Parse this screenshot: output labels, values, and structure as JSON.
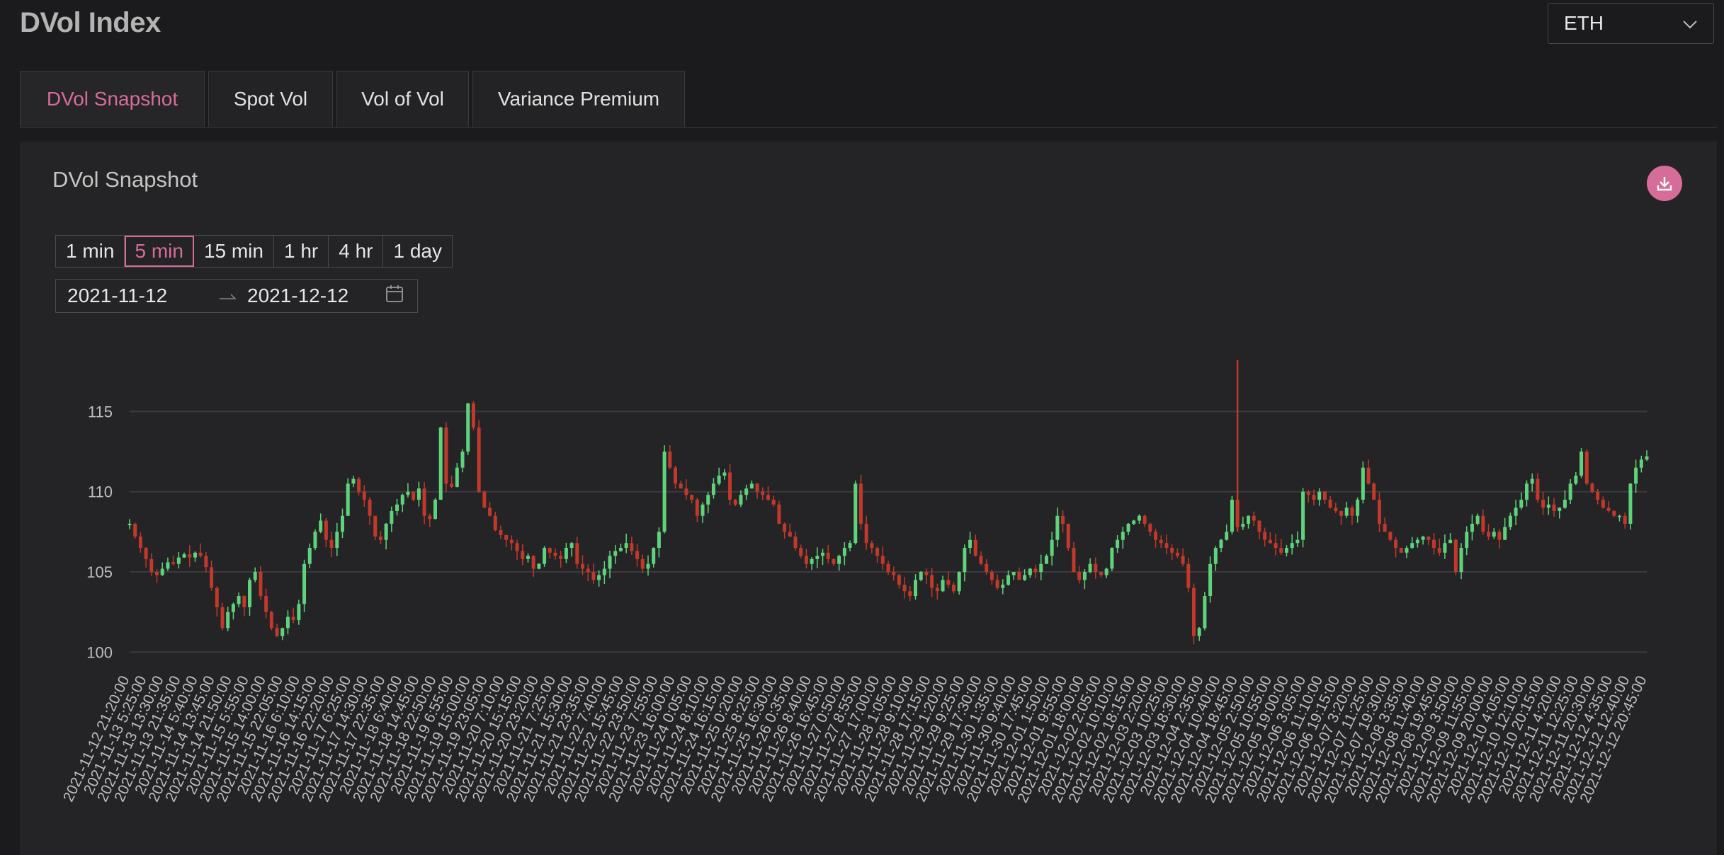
{
  "header": {
    "title": "DVol Index",
    "asset": "ETH"
  },
  "tabs": [
    {
      "label": "DVol Snapshot"
    },
    {
      "label": "Spot Vol"
    },
    {
      "label": "Vol of Vol"
    },
    {
      "label": "Variance Premium"
    }
  ],
  "panel": {
    "title": "DVol Snapshot",
    "intervals": [
      "1 min",
      "5 min",
      "15 min",
      "1 hr",
      "4 hr",
      "1 day"
    ],
    "selected_interval": "5 min",
    "date_start": "2021-11-12",
    "date_end": "2021-12-12"
  },
  "colors": {
    "accent": "#d66c9a",
    "up": "#5ed37c",
    "down": "#c0392b"
  },
  "chart_data": {
    "type": "candlestick",
    "title": "",
    "xlabel": "",
    "ylabel": "",
    "ylim": [
      99.4,
      118.5
    ],
    "yticks": [
      100,
      105,
      110,
      115
    ],
    "grid": true,
    "x_tick_labels": [
      "2021-11-12 21:20:00",
      "2021-11-13 5:25:00",
      "2021-11-13 13:30:00",
      "2021-11-13 21:35:00",
      "2021-11-14 5:40:00",
      "2021-11-14 13:45:00",
      "2021-11-14 21:50:00",
      "2021-11-15 5:55:00",
      "2021-11-15 14:00:00",
      "2021-11-15 22:05:00",
      "2021-11-16 6:10:00",
      "2021-11-16 14:15:00",
      "2021-11-16 22:20:00",
      "2021-11-17 6:25:00",
      "2021-11-17 14:30:00",
      "2021-11-17 22:35:00",
      "2021-11-18 6:40:00",
      "2021-11-18 14:45:00",
      "2021-11-18 22:50:00",
      "2021-11-19 6:55:00",
      "2021-11-19 15:00:00",
      "2021-11-19 23:05:00",
      "2021-11-20 7:10:00",
      "2021-11-20 15:15:00",
      "2021-11-20 23:20:00",
      "2021-11-21 7:25:00",
      "2021-11-21 15:30:00",
      "2021-11-21 23:35:00",
      "2021-11-22 7:40:00",
      "2021-11-22 15:45:00",
      "2021-11-22 23:50:00",
      "2021-11-23 7:55:00",
      "2021-11-23 16:00:00",
      "2021-11-24 0:05:00",
      "2021-11-24 8:10:00",
      "2021-11-24 16:15:00",
      "2021-11-25 0:20:00",
      "2021-11-25 8:25:00",
      "2021-11-25 16:30:00",
      "2021-11-26 0:35:00",
      "2021-11-26 8:40:00",
      "2021-11-26 16:45:00",
      "2021-11-27 0:50:00",
      "2021-11-27 8:55:00",
      "2021-11-27 17:00:00",
      "2021-11-28 1:05:00",
      "2021-11-28 9:10:00",
      "2021-11-28 17:15:00",
      "2021-11-29 1:20:00",
      "2021-11-29 9:25:00",
      "2021-11-29 17:30:00",
      "2021-11-30 1:35:00",
      "2021-11-30 9:40:00",
      "2021-11-30 17:45:00",
      "2021-12-01 1:50:00",
      "2021-12-01 9:55:00",
      "2021-12-01 18:00:00",
      "2021-12-02 2:05:00",
      "2021-12-02 10:10:00",
      "2021-12-02 18:15:00",
      "2021-12-03 2:20:00",
      "2021-12-03 10:25:00",
      "2021-12-03 18:30:00",
      "2021-12-04 2:35:00",
      "2021-12-04 10:40:00",
      "2021-12-04 18:45:00",
      "2021-12-05 2:50:00",
      "2021-12-05 10:55:00",
      "2021-12-05 19:00:00",
      "2021-12-06 3:05:00",
      "2021-12-06 11:10:00",
      "2021-12-06 19:15:00",
      "2021-12-07 3:20:00",
      "2021-12-07 11:25:00",
      "2021-12-07 19:30:00",
      "2021-12-08 3:35:00",
      "2021-12-08 11:40:00",
      "2021-12-08 19:45:00",
      "2021-12-09 3:50:00",
      "2021-12-09 11:55:00",
      "2021-12-09 20:00:00",
      "2021-12-10 4:05:00",
      "2021-12-10 12:10:00",
      "2021-12-10 20:15:00",
      "2021-12-11 4:20:00",
      "2021-12-11 12:25:00",
      "2021-12-11 20:30:00",
      "2021-12-12 4:35:00",
      "2021-12-12 12:40:00",
      "2021-12-12 20:45:00"
    ],
    "series": [
      {
        "values": [
          108.0,
          107.2,
          106.5,
          105.8,
          105.0,
          104.8,
          105.2,
          105.6,
          105.5,
          105.9,
          106.1,
          105.9,
          106.2,
          106.0,
          105.3,
          104.0,
          102.8,
          101.5,
          102.5,
          103.0,
          103.5,
          102.8,
          104.5,
          105.0,
          103.5,
          102.5,
          101.5,
          101.0,
          101.5,
          102.2,
          102.0,
          103.0,
          105.5,
          106.5,
          107.5,
          108.2,
          107.0,
          106.5,
          107.5,
          108.5,
          110.5,
          110.8,
          110.0,
          109.5,
          108.5,
          107.2,
          107.0,
          108.0,
          108.8,
          109.2,
          109.8,
          110.0,
          109.5,
          110.2,
          108.5,
          108.3,
          109.5,
          114.0,
          110.5,
          110.3,
          111.5,
          112.5,
          115.5,
          114.0,
          110.0,
          109.0,
          108.5,
          107.6,
          107.3,
          107.0,
          106.8,
          106.3,
          105.8,
          106.0,
          105.2,
          105.5,
          106.5,
          106.2,
          106.0,
          105.8,
          106.5,
          106.8,
          105.5,
          105.2,
          105.0,
          104.5,
          104.8,
          105.2,
          106.0,
          106.3,
          106.5,
          106.8,
          106.3,
          105.8,
          105.2,
          105.5,
          106.5,
          107.5,
          112.5,
          111.5,
          110.5,
          110.2,
          109.8,
          109.5,
          108.5,
          109.2,
          109.8,
          110.5,
          111.0,
          111.2,
          109.5,
          109.2,
          109.8,
          110.2,
          110.5,
          110.0,
          109.8,
          109.5,
          109.2,
          108.0,
          107.5,
          107.2,
          106.5,
          106.0,
          105.5,
          105.8,
          106.0,
          106.2,
          105.8,
          105.5,
          106.0,
          106.5,
          106.8,
          110.5,
          108.0,
          106.8,
          106.5,
          106.0,
          105.5,
          105.0,
          104.8,
          104.2,
          103.8,
          103.5,
          104.5,
          105.0,
          104.8,
          104.0,
          103.8,
          104.5,
          104.2,
          103.8,
          105.0,
          106.5,
          107.0,
          106.0,
          105.5,
          105.0,
          104.5,
          104.0,
          104.2,
          104.8,
          105.0,
          104.5,
          104.8,
          105.2,
          105.0,
          105.5,
          106.0,
          107.0,
          108.5,
          108.0,
          106.5,
          105.0,
          104.5,
          105.0,
          105.5,
          105.0,
          104.8,
          105.2,
          106.5,
          107.0,
          107.5,
          108.0,
          108.2,
          108.5,
          108.0,
          107.5,
          107.0,
          106.8,
          106.5,
          106.2,
          106.0,
          105.5,
          104.0,
          101.0,
          101.5,
          103.5,
          105.5,
          106.5,
          107.0,
          107.5,
          109.5,
          107.8,
          108.0,
          108.5,
          108.2,
          107.5,
          107.0,
          106.8,
          106.5,
          106.2,
          106.5,
          106.8,
          107.0,
          110.0,
          109.8,
          109.5,
          110.0,
          109.5,
          109.0,
          108.8,
          108.5,
          109.0,
          108.5,
          109.5,
          111.5,
          110.5,
          109.5,
          108.0,
          107.5,
          107.0,
          106.5,
          106.2,
          106.5,
          106.8,
          107.0,
          107.2,
          107.0,
          106.5,
          106.2,
          106.8,
          107.0,
          105.0,
          106.5,
          107.5,
          108.0,
          108.5,
          107.5,
          107.2,
          107.5,
          107.0,
          107.8,
          108.5,
          109.0,
          109.5,
          110.5,
          110.8,
          109.5,
          109.0,
          109.2,
          108.8,
          109.0,
          109.5,
          110.5,
          111.0,
          112.5,
          110.5,
          110.0,
          109.5,
          109.0,
          108.8,
          108.5,
          108.5,
          108.0,
          110.5,
          111.5,
          112.0,
          112.2
        ]
      }
    ]
  }
}
